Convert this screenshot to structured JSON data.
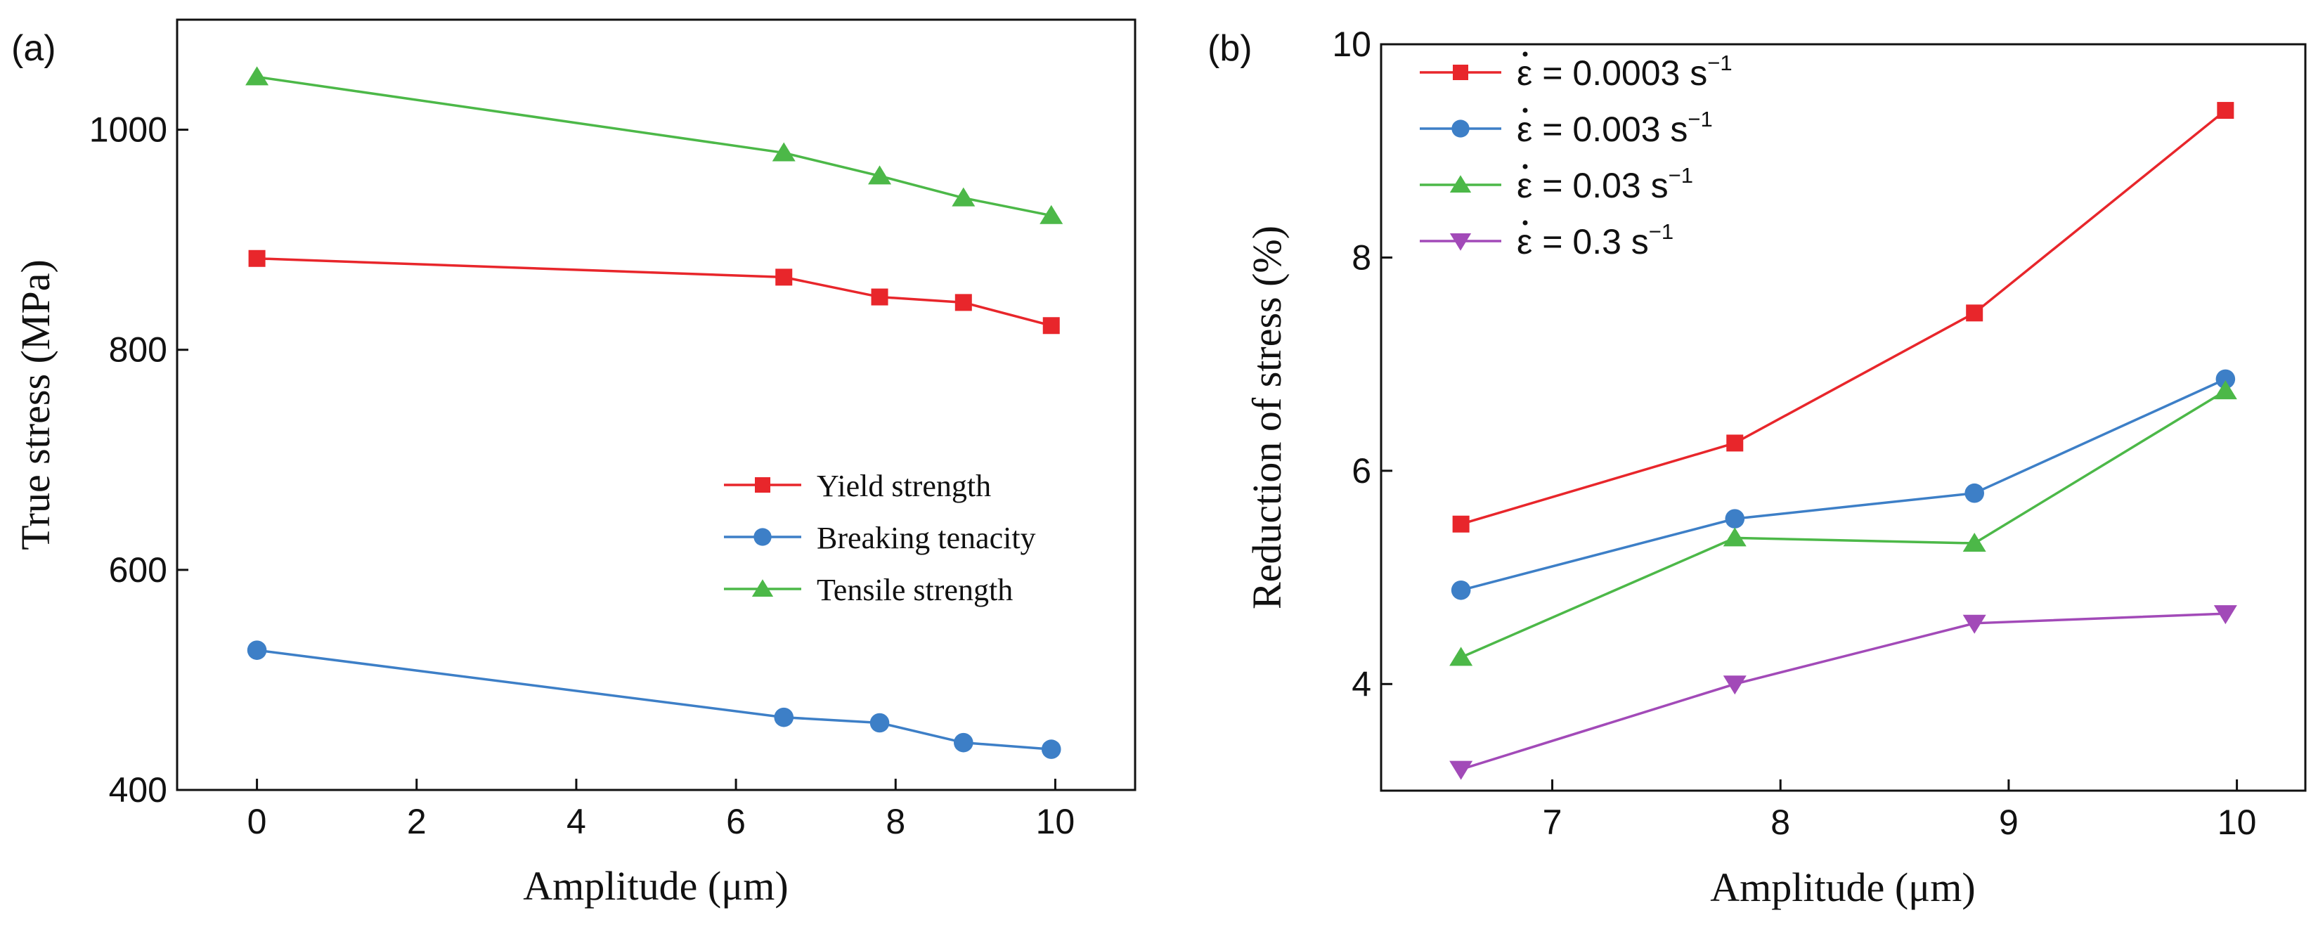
{
  "chart_data": [
    {
      "panel": "(a)",
      "type": "line",
      "xlabel": "Amplitude (μm)",
      "ylabel": "True stress (MPa)",
      "xlim": [
        -1,
        11
      ],
      "ylim": [
        400,
        1100
      ],
      "xticks": [
        0,
        2,
        4,
        6,
        8,
        10
      ],
      "yticks": [
        400,
        600,
        800,
        1000
      ],
      "legend_position": "lower-right",
      "series": [
        {
          "name": "Yield strength",
          "color": "#e8262b",
          "marker": "square",
          "x": [
            0,
            6.6,
            7.8,
            8.85,
            9.95
          ],
          "y": [
            883,
            866,
            848,
            843,
            822
          ]
        },
        {
          "name": "Breaking tenacity",
          "color": "#3d7fc7",
          "marker": "circle",
          "x": [
            0,
            6.6,
            7.8,
            8.85,
            9.95
          ],
          "y": [
            527,
            466,
            461,
            443,
            437
          ]
        },
        {
          "name": "Tensile strength",
          "color": "#4cb848",
          "marker": "triangle-up",
          "x": [
            0,
            6.6,
            7.8,
            8.85,
            9.95
          ],
          "y": [
            1048,
            979,
            958,
            938,
            922
          ]
        }
      ]
    },
    {
      "panel": "(b)",
      "type": "line",
      "xlabel": "Amplitude (μm)",
      "ylabel": "Reduction of stress (%)",
      "xlim": [
        6.25,
        10.3
      ],
      "ylim": [
        3,
        10
      ],
      "xticks": [
        7,
        8,
        9,
        10
      ],
      "yticks": [
        4,
        6,
        8,
        10
      ],
      "legend_position": "top-left",
      "series": [
        {
          "name": "ε̇ = 0.0003 s⁻¹",
          "prefix": "ε",
          "rate": "= 0.0003 s",
          "exp": "−1",
          "color": "#e8262b",
          "marker": "square",
          "x": [
            6.6,
            7.8,
            8.85,
            9.95
          ],
          "y": [
            5.5,
            6.26,
            7.48,
            9.38
          ]
        },
        {
          "name": "ε̇ = 0.003 s⁻¹",
          "prefix": "ε",
          "rate": "= 0.003 s",
          "exp": "−1",
          "color": "#3d7fc7",
          "marker": "circle",
          "x": [
            6.6,
            7.8,
            8.85,
            9.95
          ],
          "y": [
            4.88,
            5.55,
            5.79,
            6.86
          ]
        },
        {
          "name": "ε̇ = 0.03 s⁻¹",
          "prefix": "ε",
          "rate": "= 0.03 s",
          "exp": "−1",
          "color": "#4cb848",
          "marker": "triangle-up",
          "x": [
            6.6,
            7.8,
            8.85,
            9.95
          ],
          "y": [
            4.25,
            5.37,
            5.32,
            6.75
          ]
        },
        {
          "name": "ε̇ = 0.3 s⁻¹",
          "prefix": "ε",
          "rate": "= 0.3 s",
          "exp": "−1",
          "color": "#a24ab8",
          "marker": "triangle-down",
          "x": [
            6.6,
            7.8,
            8.85,
            9.95
          ],
          "y": [
            3.2,
            4.0,
            4.57,
            4.66
          ]
        }
      ]
    }
  ]
}
